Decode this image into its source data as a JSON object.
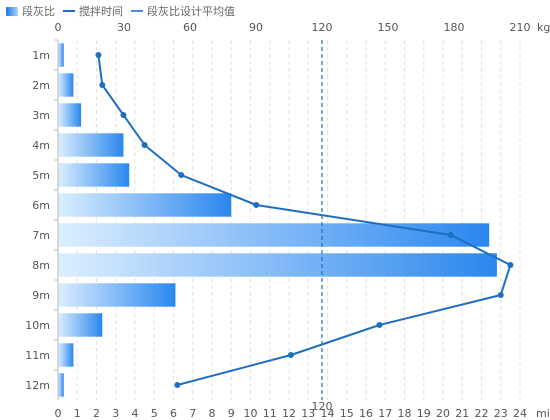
{
  "legend": [
    {
      "label": "段灰比",
      "kind": "bar"
    },
    {
      "label": "搅拌时间",
      "kind": "line",
      "color": "#1e6fbf"
    },
    {
      "label": "段灰比设计平均值",
      "kind": "line",
      "color": "#4a90e2"
    }
  ],
  "chart_data": {
    "type": "bar",
    "orientation": "horizontal",
    "categories": [
      "1m",
      "2m",
      "3m",
      "4m",
      "5m",
      "6m",
      "7m",
      "8m",
      "9m",
      "10m",
      "11m",
      "12m"
    ],
    "series": [
      {
        "name": "段灰比",
        "values": [
          0.3,
          0.8,
          1.2,
          3.4,
          3.7,
          9.0,
          22.4,
          22.8,
          6.1,
          2.3,
          0.8,
          0.3
        ],
        "axis": "bottom",
        "color": "#2a87ee"
      },
      {
        "name": "搅拌时间",
        "values": [
          2.1,
          2.3,
          3.4,
          4.5,
          6.4,
          10.3,
          20.4,
          23.5,
          23.0,
          16.7,
          12.1,
          6.2
        ],
        "axis": "bottom",
        "color": "#1e6fbf"
      }
    ],
    "reference_lines": [
      {
        "name": "段灰比设计平均值",
        "value": 120,
        "axis": "top",
        "label": "120",
        "style": "dashed",
        "color": "#1e6fbf"
      }
    ],
    "top_axis": {
      "min": 0,
      "max": 210,
      "ticks": [
        "0",
        "30",
        "60",
        "90",
        "120",
        "150",
        "180",
        "210"
      ],
      "unit": "kg"
    },
    "bottom_axis": {
      "min": 0,
      "max": 24,
      "ticks": [
        "0",
        "1",
        "2",
        "3",
        "4",
        "5",
        "6",
        "7",
        "8",
        "9",
        "10",
        "11",
        "12",
        "13",
        "14",
        "15",
        "16",
        "17",
        "18",
        "19",
        "20",
        "21",
        "22",
        "23",
        "24"
      ],
      "unit": "mi"
    },
    "grid": true
  }
}
